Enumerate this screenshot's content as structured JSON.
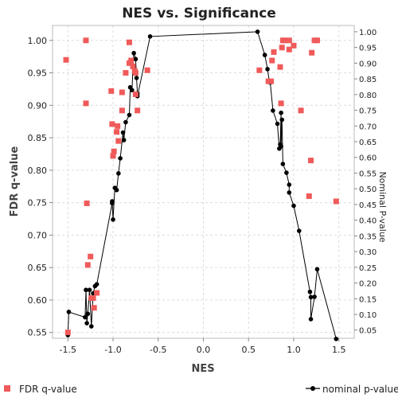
{
  "chart_data": {
    "type": "scatter",
    "title": "NES vs. Significance",
    "xlabel": "NES",
    "ylabel": "FDR q-value",
    "y2label": "Nominal P-value",
    "xlim": [
      -1.67,
      1.67
    ],
    "ylim": [
      0.541,
      1.023
    ],
    "y2lim": [
      0.024,
      1.02
    ],
    "x_ticks": [
      -1.5,
      -1.0,
      -0.5,
      0.0,
      0.5,
      1.0,
      1.5
    ],
    "x_tick_labels": [
      "-1.5",
      "-1.0",
      "-0.5",
      "0.0",
      "0.5",
      "1.0",
      "1.5"
    ],
    "y_ticks": [
      0.55,
      0.6,
      0.65,
      0.7,
      0.75,
      0.8,
      0.85,
      0.9,
      0.95,
      1.0
    ],
    "y_tick_labels": [
      "0.55",
      "0.60",
      "0.65",
      "0.70",
      "0.75",
      "0.80",
      "0.85",
      "0.90",
      "0.95",
      "1.00"
    ],
    "y2_ticks": [
      0.05,
      0.1,
      0.15,
      0.2,
      0.25,
      0.3,
      0.35,
      0.4,
      0.45,
      0.5,
      0.55,
      0.6,
      0.65,
      0.7,
      0.75,
      0.8,
      0.85,
      0.9,
      0.95,
      1.0
    ],
    "y2_tick_labels": [
      "0.05",
      "0.10",
      "0.15",
      "0.20",
      "0.25",
      "0.30",
      "0.35",
      "0.40",
      "0.45",
      "0.50",
      "0.55",
      "0.60",
      "0.65",
      "0.70",
      "0.75",
      "0.80",
      "0.85",
      "0.90",
      "0.95",
      "1.00"
    ],
    "grid": true,
    "legend_placement": "bottom",
    "series": [
      {
        "name": "FDR q-value",
        "style": "square markers",
        "color": "#f05a5a",
        "axis": "left",
        "points": [
          [
            -1.52,
            0.97
          ],
          [
            -1.5,
            0.55
          ],
          [
            -1.3,
            1.0
          ],
          [
            -1.3,
            0.903
          ],
          [
            -1.29,
            0.749
          ],
          [
            -1.28,
            0.654
          ],
          [
            -1.25,
            0.667
          ],
          [
            -1.24,
            0.603
          ],
          [
            -1.22,
            0.603
          ],
          [
            -1.21,
            0.588
          ],
          [
            -1.18,
            0.611
          ],
          [
            -1.02,
            0.922
          ],
          [
            -1.01,
            0.871
          ],
          [
            -1.0,
            0.822
          ],
          [
            -0.99,
            0.829
          ],
          [
            -0.96,
            0.859
          ],
          [
            -0.95,
            0.868
          ],
          [
            -0.94,
            0.845
          ],
          [
            -0.9,
            0.892
          ],
          [
            -0.9,
            0.92
          ],
          [
            -0.86,
            0.95
          ],
          [
            -0.82,
            0.997
          ],
          [
            -0.82,
            0.965
          ],
          [
            -0.8,
            0.969
          ],
          [
            -0.78,
            0.96
          ],
          [
            -0.76,
            0.953
          ],
          [
            -0.75,
            0.95
          ],
          [
            -0.75,
            0.917
          ],
          [
            -0.73,
            0.892
          ],
          [
            -0.62,
            0.954
          ],
          [
            0.62,
            0.954
          ],
          [
            0.72,
            0.937
          ],
          [
            0.75,
            0.937
          ],
          [
            0.76,
            0.969
          ],
          [
            0.78,
            0.982
          ],
          [
            0.85,
            0.959
          ],
          [
            0.86,
            0.903
          ],
          [
            0.87,
            0.989
          ],
          [
            0.88,
            1.0
          ],
          [
            0.9,
            1.0
          ],
          [
            0.95,
            1.0
          ],
          [
            0.95,
            0.986
          ],
          [
            1.0,
            0.992
          ],
          [
            1.08,
            0.892
          ],
          [
            1.17,
            0.76
          ],
          [
            1.19,
            0.815
          ],
          [
            1.2,
            0.981
          ],
          [
            1.23,
            1.0
          ],
          [
            1.26,
            1.0
          ],
          [
            1.47,
            0.752
          ]
        ]
      },
      {
        "name": "nominal p-value",
        "style": "line with circle markers",
        "color": "#000000",
        "axis": "right",
        "points": [
          [
            -1.5,
            0.034
          ],
          [
            -1.49,
            0.108
          ],
          [
            -1.31,
            0.091
          ],
          [
            -1.3,
            0.178
          ],
          [
            -1.29,
            0.072
          ],
          [
            -1.28,
            0.102
          ],
          [
            -1.26,
            0.178
          ],
          [
            -1.24,
            0.062
          ],
          [
            -1.22,
            0.167
          ],
          [
            -1.2,
            0.19
          ],
          [
            -1.18,
            0.196
          ],
          [
            -1.01,
            0.454
          ],
          [
            -1.01,
            0.46
          ],
          [
            -1.0,
            0.402
          ],
          [
            -0.98,
            0.503
          ],
          [
            -0.96,
            0.496
          ],
          [
            -0.94,
            0.549
          ],
          [
            -0.92,
            0.597
          ],
          [
            -0.89,
            0.679
          ],
          [
            -0.88,
            0.655
          ],
          [
            -0.86,
            0.712
          ],
          [
            -0.82,
            0.735
          ],
          [
            -0.81,
            0.823
          ],
          [
            -0.79,
            0.814
          ],
          [
            -0.78,
            0.891
          ],
          [
            -0.77,
            0.932
          ],
          [
            -0.75,
            0.913
          ],
          [
            -0.74,
            0.853
          ],
          [
            -0.73,
            0.804
          ],
          [
            -0.73,
            0.795
          ],
          [
            -0.59,
            0.985
          ],
          [
            0.6,
            1.0
          ],
          [
            0.68,
            0.926
          ],
          [
            0.71,
            0.881
          ],
          [
            0.73,
            0.843
          ],
          [
            0.74,
            0.838
          ],
          [
            0.77,
            0.749
          ],
          [
            0.82,
            0.707
          ],
          [
            0.84,
            0.628
          ],
          [
            0.85,
            0.641
          ],
          [
            0.86,
            0.742
          ],
          [
            0.86,
            0.635
          ],
          [
            0.87,
            0.72
          ],
          [
            0.88,
            0.579
          ],
          [
            0.92,
            0.551
          ],
          [
            0.95,
            0.513
          ],
          [
            0.95,
            0.488
          ],
          [
            1.0,
            0.446
          ],
          [
            1.06,
            0.366
          ],
          [
            1.18,
            0.172
          ],
          [
            1.19,
            0.155
          ],
          [
            1.19,
            0.085
          ],
          [
            1.23,
            0.156
          ],
          [
            1.26,
            0.244
          ],
          [
            1.47,
            0.022
          ]
        ]
      }
    ]
  }
}
